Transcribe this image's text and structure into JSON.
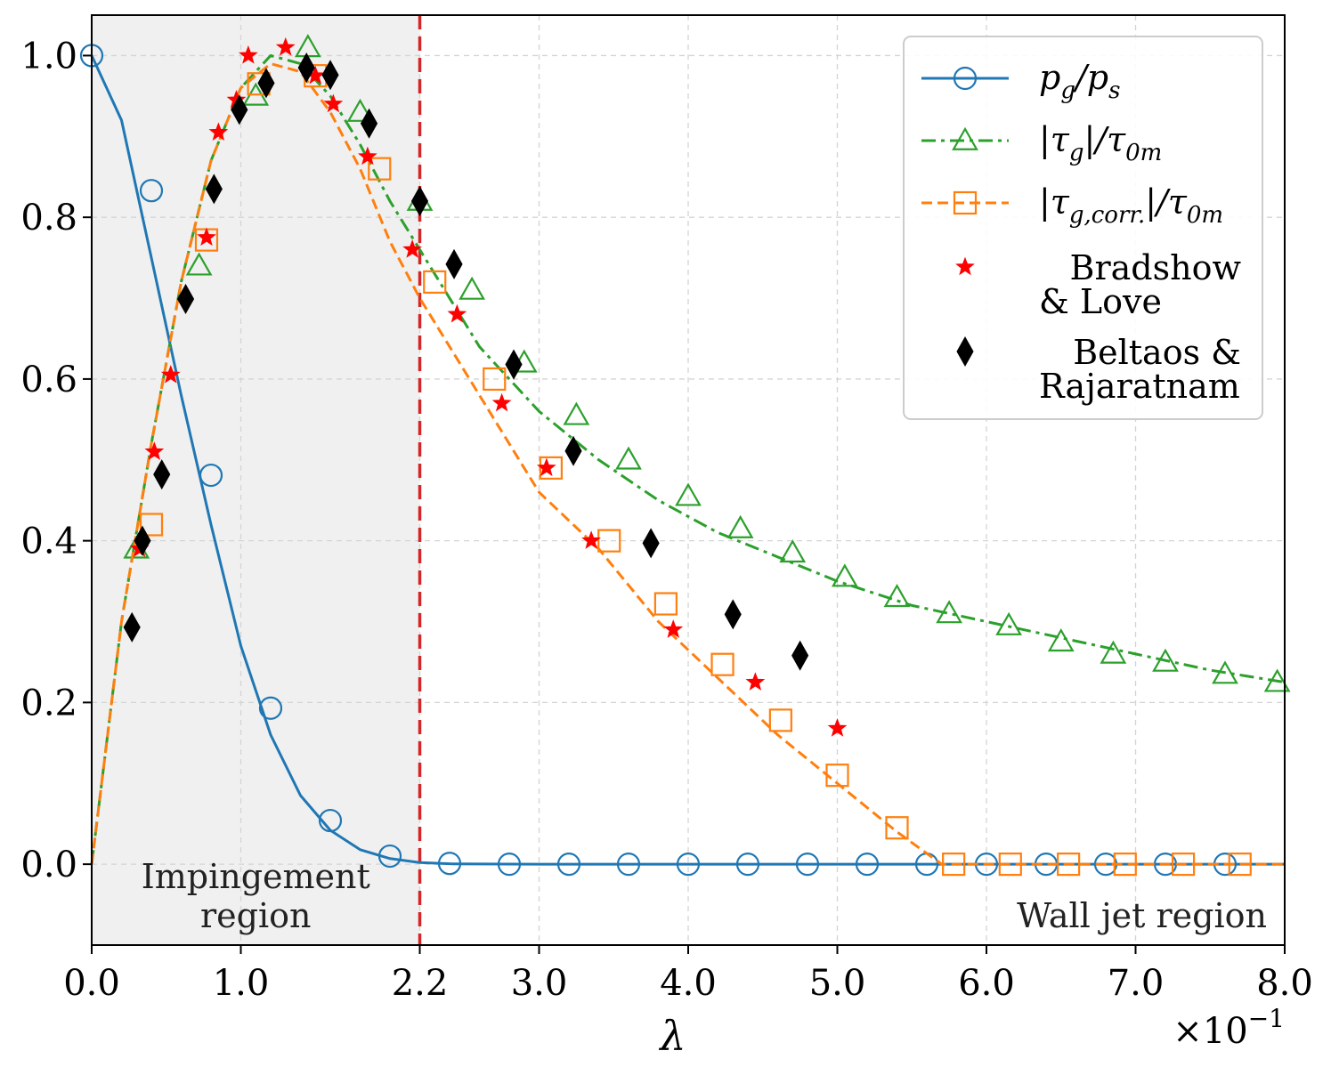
{
  "chart_data": {
    "type": "line",
    "title": "",
    "xlabel": "λ",
    "x_scale_note": "×10",
    "x_scale_exp": "−1",
    "ylabel": "",
    "xlim": [
      0,
      8
    ],
    "ylim": [
      -0.1,
      1.05
    ],
    "grid": true,
    "legend_position": "top-right",
    "x_ticks": [
      0,
      1,
      2.2,
      3,
      4,
      5,
      6,
      7,
      8
    ],
    "x_tick_labels": [
      "0.0",
      "1.0",
      "2.2",
      "3.0",
      "4.0",
      "5.0",
      "6.0",
      "7.0",
      "8.0"
    ],
    "highlight_tick_color": "#d62728",
    "y_ticks": [
      0,
      0.2,
      0.4,
      0.6,
      0.8,
      1.0
    ],
    "y_tick_labels": [
      "0.0",
      "0.2",
      "0.4",
      "0.6",
      "0.8",
      "1.0"
    ],
    "regions": {
      "impingement": {
        "x_range": [
          0,
          2.2
        ],
        "label_line1": "Impingement",
        "label_line2": "region",
        "fill": "#f0f0f0"
      },
      "wall_jet": {
        "label": "Wall jet region"
      },
      "divider_x": 2.2,
      "divider_color": "#d62728"
    },
    "series": [
      {
        "name": "pg_ps",
        "legend_main": "p",
        "legend_sub1": "g",
        "legend_mid": "/p",
        "legend_sub2": "s",
        "color": "#1f77b4",
        "line_style": "solid",
        "marker": "circle",
        "curve_x": [
          0,
          0.2,
          0.4,
          0.6,
          0.8,
          1.0,
          1.2,
          1.4,
          1.6,
          1.8,
          2.0,
          2.2,
          2.4,
          3,
          4,
          5,
          6,
          7,
          8
        ],
        "curve_y": [
          1.0,
          0.92,
          0.75,
          0.58,
          0.42,
          0.27,
          0.16,
          0.085,
          0.042,
          0.018,
          0.007,
          0.002,
          0.0005,
          0,
          0,
          0,
          0,
          0,
          0
        ],
        "marker_x": [
          0,
          0.4,
          0.8,
          1.2,
          1.6,
          2.0,
          2.4,
          2.8,
          3.2,
          3.6,
          4.0,
          4.4,
          4.8,
          5.2,
          5.6,
          6.0,
          6.4,
          6.8,
          7.2,
          7.6
        ],
        "marker_y": [
          1.0,
          0.833,
          0.481,
          0.193,
          0.054,
          0.01,
          0.001,
          0,
          0,
          0,
          0,
          0,
          0,
          0,
          0,
          0,
          0,
          0,
          0,
          0
        ]
      },
      {
        "name": "tau_g",
        "legend_main": "|τ",
        "legend_sub1": "g",
        "legend_mid": "|/τ",
        "legend_sub2": "0m",
        "color": "#2ca02c",
        "line_style": "dashdot",
        "marker": "triangle",
        "curve_x": [
          0,
          0.2,
          0.4,
          0.6,
          0.8,
          1.0,
          1.2,
          1.4,
          1.6,
          1.8,
          2.0,
          2.2,
          2.4,
          2.6,
          2.8,
          3.0,
          3.4,
          3.8,
          4.2,
          4.6,
          5.0,
          5.5,
          6.0,
          6.5,
          7.0,
          7.5,
          8.0
        ],
        "curve_y": [
          0.0,
          0.3,
          0.52,
          0.72,
          0.87,
          0.96,
          1.0,
          0.99,
          0.95,
          0.89,
          0.82,
          0.76,
          0.7,
          0.64,
          0.6,
          0.56,
          0.5,
          0.45,
          0.41,
          0.38,
          0.35,
          0.32,
          0.3,
          0.28,
          0.26,
          0.24,
          0.225
        ],
        "marker_x": [
          0.3,
          0.72,
          1.1,
          1.45,
          1.8,
          2.2,
          2.55,
          2.9,
          3.25,
          3.6,
          4.0,
          4.35,
          4.7,
          5.05,
          5.4,
          5.75,
          6.15,
          6.5,
          6.85,
          7.2,
          7.6,
          7.95
        ],
        "marker_y": [
          0.39,
          0.74,
          0.95,
          1.01,
          0.93,
          0.82,
          0.71,
          0.62,
          0.555,
          0.5,
          0.455,
          0.415,
          0.385,
          0.355,
          0.33,
          0.31,
          0.295,
          0.275,
          0.26,
          0.25,
          0.235,
          0.225
        ]
      },
      {
        "name": "tau_g_corr",
        "legend_main": "|τ",
        "legend_sub1": "g,corr.",
        "legend_mid": "|/τ",
        "legend_sub2": "0m",
        "color": "#ff7f0e",
        "line_style": "dashed",
        "marker": "square",
        "curve_x": [
          0,
          0.2,
          0.4,
          0.6,
          0.8,
          1.0,
          1.2,
          1.4,
          1.6,
          1.8,
          2.0,
          2.2,
          2.4,
          2.6,
          2.8,
          3.0,
          3.4,
          3.8,
          4.2,
          4.6,
          5.0,
          5.4,
          5.7,
          6.0,
          7.0,
          8.0
        ],
        "curve_y": [
          0.0,
          0.3,
          0.52,
          0.72,
          0.87,
          0.96,
          0.99,
          0.98,
          0.93,
          0.86,
          0.77,
          0.7,
          0.64,
          0.58,
          0.52,
          0.46,
          0.39,
          0.3,
          0.23,
          0.16,
          0.1,
          0.04,
          0,
          0,
          0,
          0
        ],
        "marker_x": [
          0.4,
          0.77,
          1.12,
          1.5,
          1.93,
          2.3,
          2.7,
          3.08,
          3.47,
          3.85,
          4.23,
          4.62,
          5.0,
          5.4,
          5.78,
          6.16,
          6.55,
          6.93,
          7.32,
          7.7
        ],
        "marker_y": [
          0.42,
          0.772,
          0.965,
          0.975,
          0.86,
          0.72,
          0.6,
          0.49,
          0.4,
          0.322,
          0.247,
          0.178,
          0.11,
          0.045,
          0,
          0,
          0,
          0,
          0,
          0
        ]
      },
      {
        "name": "bradshow_love",
        "legend_main": "Bradshow",
        "legend_line2": "& Love",
        "color": "#ff0000",
        "line_style": "none",
        "marker": "star",
        "marker_x": [
          0.32,
          0.42,
          0.53,
          0.77,
          0.85,
          0.97,
          1.05,
          1.3,
          1.5,
          1.62,
          1.85,
          2.15,
          2.45,
          2.75,
          3.05,
          3.35,
          3.9,
          4.45,
          5.0
        ],
        "marker_y": [
          0.39,
          0.51,
          0.605,
          0.775,
          0.905,
          0.945,
          1.0,
          1.01,
          0.975,
          0.94,
          0.875,
          0.76,
          0.68,
          0.57,
          0.49,
          0.4,
          0.29,
          0.225,
          0.168
        ]
      },
      {
        "name": "beltaos_rajaratnam",
        "legend_main": "Beltaos &",
        "legend_line2": "Rajaratnam",
        "color": "#000000",
        "line_style": "none",
        "marker": "diamond",
        "marker_x": [
          0.27,
          0.34,
          0.47,
          0.63,
          0.82,
          0.99,
          1.17,
          1.44,
          1.6,
          1.86,
          2.2,
          2.43,
          2.83,
          3.23,
          3.75,
          4.3,
          4.75
        ],
        "marker_y": [
          0.293,
          0.4,
          0.482,
          0.699,
          0.835,
          0.933,
          0.966,
          0.985,
          0.976,
          0.916,
          0.82,
          0.742,
          0.618,
          0.511,
          0.397,
          0.309,
          0.258
        ]
      }
    ]
  }
}
